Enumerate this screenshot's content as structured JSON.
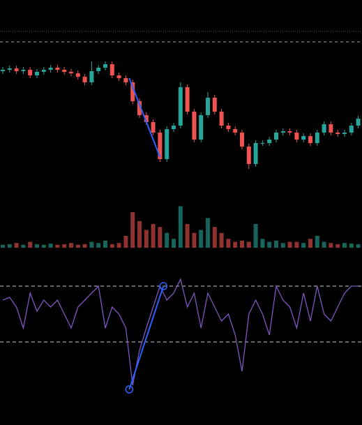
{
  "chart_data": [
    {
      "type": "candlestick",
      "up_color": "#26a69a",
      "down_color": "#ef5350",
      "ylim": [
        0,
        200
      ],
      "open": [
        158,
        160,
        162,
        158,
        160,
        152,
        157,
        160,
        163,
        160,
        157,
        155,
        150,
        142,
        158,
        163,
        168,
        152,
        148,
        142,
        115,
        95,
        85,
        70,
        32,
        75,
        80,
        135,
        100,
        60,
        95,
        120,
        100,
        80,
        75,
        70,
        50,
        25,
        55,
        55,
        60,
        70,
        72,
        70,
        60,
        65,
        55,
        70,
        82,
        70,
        68,
        70,
        80
      ],
      "high": [
        164,
        166,
        166,
        164,
        164,
        161,
        164,
        167,
        167,
        164,
        161,
        159,
        154,
        172,
        167,
        172,
        172,
        156,
        152,
        146,
        119,
        99,
        89,
        74,
        79,
        84,
        142,
        139,
        104,
        99,
        128,
        124,
        104,
        84,
        79,
        74,
        54,
        59,
        59,
        64,
        74,
        76,
        76,
        74,
        69,
        69,
        74,
        86,
        86,
        74,
        74,
        84,
        94
      ],
      "low": [
        154,
        156,
        154,
        154,
        148,
        148,
        153,
        156,
        156,
        153,
        151,
        146,
        138,
        138,
        154,
        159,
        148,
        144,
        138,
        111,
        91,
        81,
        66,
        28,
        28,
        71,
        76,
        96,
        56,
        56,
        91,
        96,
        76,
        71,
        66,
        46,
        18,
        21,
        51,
        51,
        56,
        66,
        66,
        56,
        56,
        51,
        51,
        66,
        66,
        64,
        64,
        66,
        76
      ],
      "close": [
        160,
        162,
        158,
        160,
        152,
        157,
        160,
        163,
        160,
        157,
        155,
        150,
        142,
        158,
        163,
        168,
        152,
        148,
        142,
        115,
        95,
        85,
        70,
        32,
        75,
        80,
        135,
        100,
        60,
        95,
        120,
        100,
        80,
        75,
        70,
        50,
        25,
        55,
        55,
        60,
        70,
        72,
        70,
        60,
        65,
        55,
        70,
        82,
        70,
        68,
        70,
        80,
        90
      ],
      "volume_ylim": [
        0,
        100
      ],
      "volume": [
        5,
        6,
        8,
        5,
        10,
        6,
        5,
        7,
        5,
        6,
        8,
        5,
        6,
        10,
        8,
        12,
        6,
        8,
        20,
        60,
        45,
        30,
        40,
        35,
        25,
        15,
        70,
        40,
        25,
        30,
        50,
        35,
        25,
        15,
        10,
        12,
        10,
        40,
        15,
        10,
        12,
        8,
        10,
        10,
        8,
        15,
        20,
        10,
        8,
        6,
        8,
        7,
        6
      ],
      "trendlines": [
        {
          "x": [
            18.5,
            23
          ],
          "y": [
            148,
            35
          ],
          "color": "#2962ff"
        }
      ]
    },
    {
      "type": "line",
      "color": "#7e57c2",
      "ylim": [
        -10,
        85
      ],
      "yticks": [
        30,
        70
      ],
      "grid": true,
      "values": [
        60,
        62,
        55,
        40,
        65,
        52,
        60,
        55,
        60,
        50,
        40,
        55,
        60,
        65,
        70,
        40,
        55,
        50,
        40,
        -1,
        24,
        40,
        55,
        70,
        60,
        65,
        75,
        55,
        65,
        40,
        65,
        55,
        45,
        50,
        35,
        9,
        50,
        60,
        50,
        35,
        70,
        60,
        55,
        40,
        65,
        45,
        70,
        50,
        45,
        55,
        65,
        70,
        70
      ],
      "trendlines": [
        {
          "x": [
            18.5,
            23.5
          ],
          "y": [
            -4,
            70
          ],
          "color": "#2962ff",
          "endpoints": true
        }
      ]
    }
  ]
}
